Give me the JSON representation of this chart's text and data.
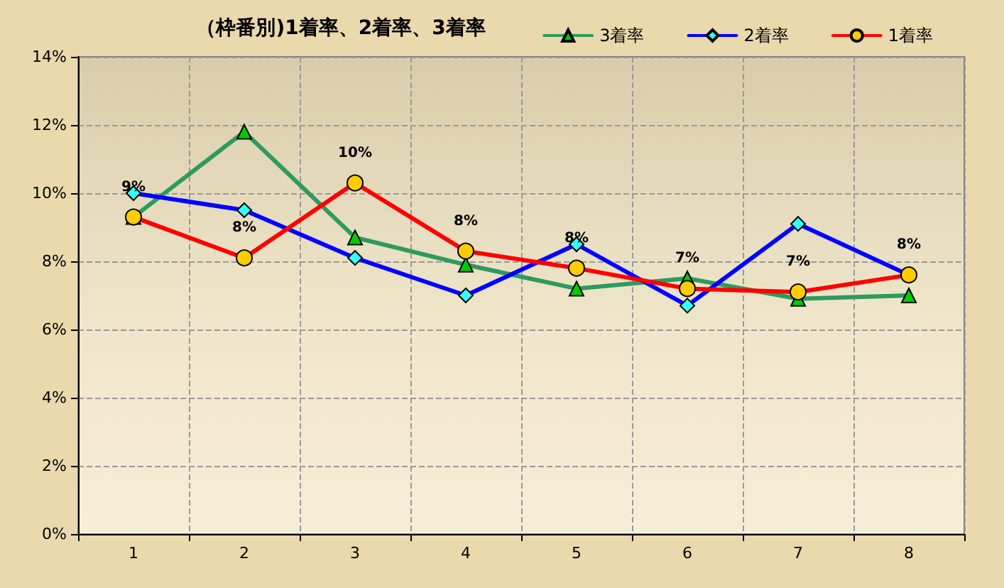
{
  "chart_data": {
    "type": "line",
    "title": "（枠番別)1着率、2着率、3着率",
    "categories": [
      "1",
      "2",
      "3",
      "4",
      "5",
      "6",
      "7",
      "8"
    ],
    "series": [
      {
        "name": "3着率",
        "color": "#2e9a5e",
        "marker": "triangle",
        "colors": [
          "#00cc00",
          "#00cc00",
          "#00cc00",
          "#00cc00",
          "#00cc00",
          "#00cc00",
          "#00cc00",
          "#00cc00"
        ],
        "values": [
          9.3,
          11.8,
          8.7,
          7.9,
          7.2,
          7.5,
          6.9,
          7.0
        ]
      },
      {
        "name": "2着率",
        "color": "#0000ff",
        "marker": "diamond",
        "colors": [
          "#33ffff",
          "#33ffff",
          "#33ffff",
          "#33ffff",
          "#33ffff",
          "#33ffff",
          "#33ffff",
          "#33ffff"
        ],
        "values": [
          10.0,
          9.5,
          8.1,
          7.0,
          8.5,
          6.7,
          9.1,
          7.6
        ]
      },
      {
        "name": "1着率",
        "color": "#ff0000",
        "marker": "circle",
        "colors": [
          "#ffcc00",
          "#ffcc00",
          "#ffcc00",
          "#ffcc00",
          "#ffcc00",
          "#ffcc00",
          "#ffcc00",
          "#ffcc00"
        ],
        "values": [
          9.3,
          8.1,
          10.3,
          8.3,
          7.8,
          7.2,
          7.1,
          7.6
        ],
        "value_labels": [
          "9%",
          "8%",
          "10%",
          "8%",
          "8%",
          "7%",
          "7%",
          "8%"
        ]
      }
    ],
    "ylim": [
      0,
      14
    ],
    "yticks": [
      {
        "value": 0,
        "label": "0%"
      },
      {
        "value": 2,
        "label": "2%"
      },
      {
        "value": 4,
        "label": "4%"
      },
      {
        "value": 6,
        "label": "6%"
      },
      {
        "value": 8,
        "label": "8%"
      },
      {
        "value": 10,
        "label": "10%"
      },
      {
        "value": 12,
        "label": "12%"
      },
      {
        "value": 14,
        "label": "14%"
      }
    ],
    "grid": true,
    "legend": "top right",
    "line_style": "solid"
  }
}
